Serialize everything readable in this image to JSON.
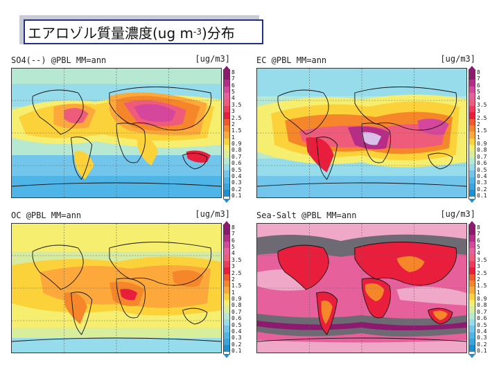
{
  "title": {
    "main": "エアロゾル質量濃度(ug m",
    "sup": "-3",
    "tail": ")分布"
  },
  "panels": [
    {
      "label": "SO4(--) @PBL MM=ann",
      "unit": "[ug/m3]"
    },
    {
      "label": "EC @PBL MM=ann",
      "unit": "[ug/m3]"
    },
    {
      "label": "OC @PBL MM=ann",
      "unit": "[ug/m3]"
    },
    {
      "label": "Sea-Salt @PBL MM=ann",
      "unit": "[ug/m3]"
    }
  ],
  "colorbar": {
    "levels": [
      "8",
      "7",
      "6",
      "5",
      "4",
      "3.5",
      "3",
      "2.5",
      "2",
      "1.5",
      "1",
      "0.9",
      "0.8",
      "0.7",
      "0.6",
      "0.5",
      "0.4",
      "0.3",
      "0.2",
      "0.1"
    ],
    "colors": [
      "#8c1a6e",
      "#b52d86",
      "#d4479c",
      "#e6609c",
      "#ef5b7b",
      "#f23a5a",
      "#e81e3c",
      "#f25a2e",
      "#f5872a",
      "#fca83a",
      "#fcd23a",
      "#f6ee6e",
      "#d8ee9a",
      "#b6e8d2",
      "#96dcea",
      "#72c6ec",
      "#4fb4e6",
      "#3aa4de",
      "#1e90d0"
    ]
  }
}
